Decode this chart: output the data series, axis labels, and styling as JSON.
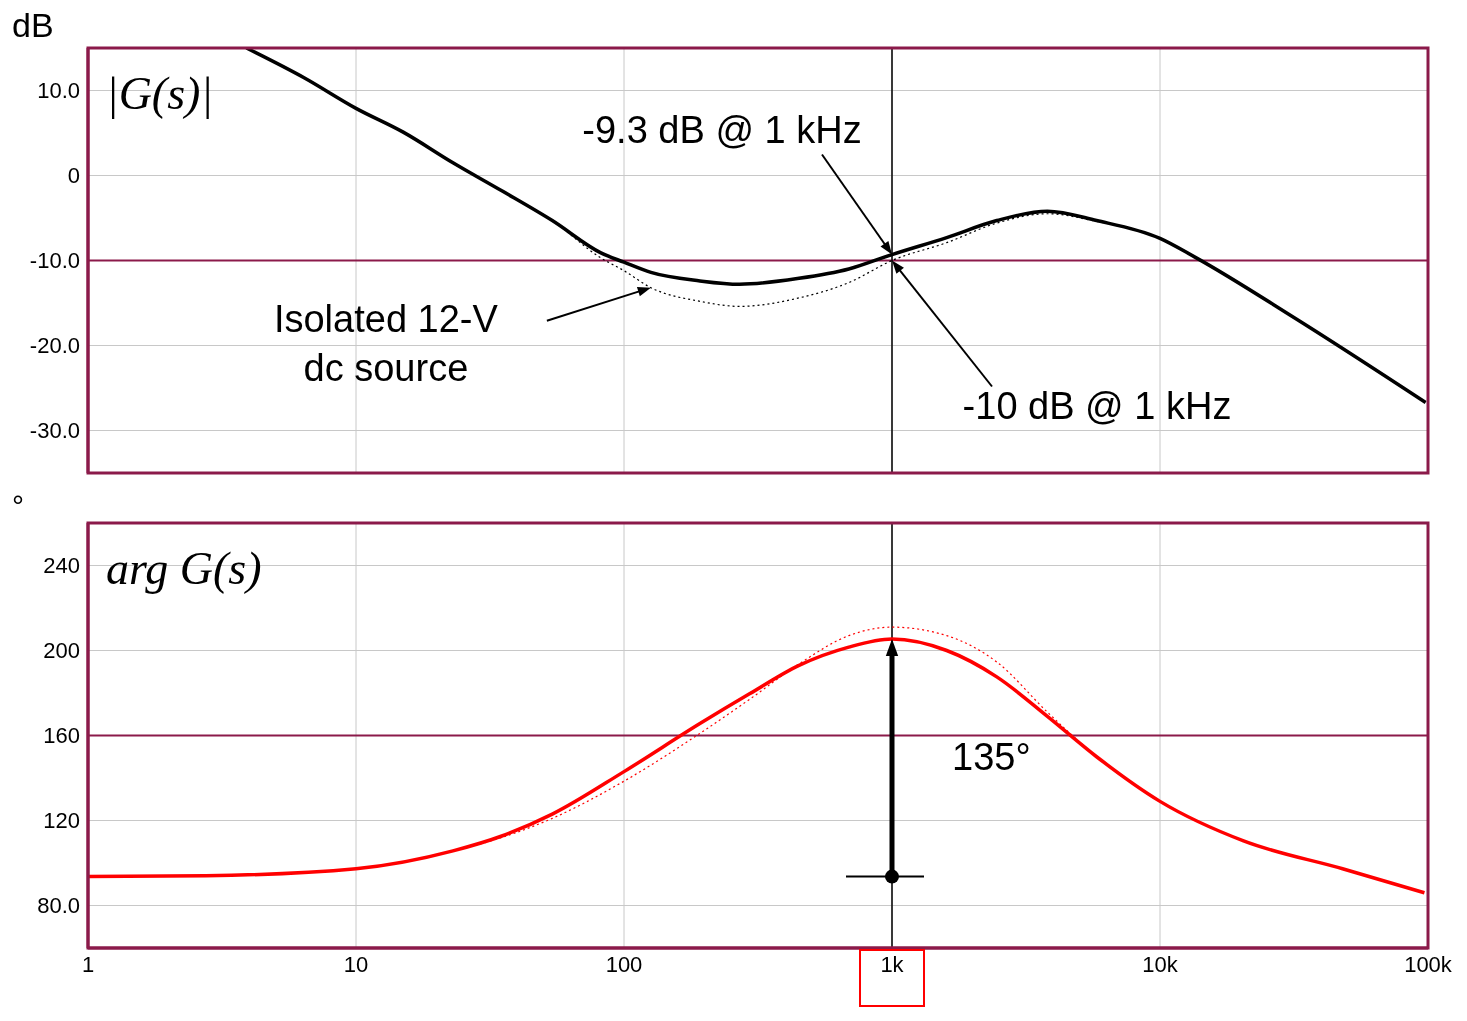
{
  "chart_data": [
    {
      "type": "line",
      "ylabel": "dB",
      "xlim": [
        1,
        100000
      ],
      "xticks": [
        {
          "value": 1,
          "label": null
        },
        {
          "value": 10,
          "label": null
        },
        {
          "value": 100,
          "label": null
        },
        {
          "value": 1000,
          "label": null
        },
        {
          "value": 10000,
          "label": null
        },
        {
          "value": 100000,
          "label": null
        }
      ],
      "ylim": [
        -35,
        15
      ],
      "yticks": [
        {
          "value": -30,
          "label": "-30.0"
        },
        {
          "value": -20,
          "label": "-20.0"
        },
        {
          "value": -10,
          "label": "-10.0"
        },
        0,
        {
          "value": 10,
          "label": "10.0"
        }
      ],
      "log": "x",
      "grid": true,
      "tick_labels": "y",
      "series": [
        {
          "color": "#000000",
          "x": [
            3.9,
            6.4,
            10,
            15,
            23,
            35,
            54,
            82,
            100,
            126,
            192,
            270,
            450,
            690,
            1000,
            1600,
            2460,
            3800,
            5800,
            10000,
            13500,
            31600,
            98000
          ],
          "values": [
            15,
            11.5,
            7.9,
            5.1,
            1.5,
            -1.8,
            -5.3,
            -9.1,
            -10.2,
            -11.4,
            -12.4,
            -12.8,
            -12.1,
            -11,
            -9.3,
            -7.3,
            -5.3,
            -4.2,
            -5.3,
            -7.4,
            -9.6,
            -16.7,
            -26.7
          ]
        },
        {
          "color": "#000000",
          "line_style": "dotted",
          "x": [
            3.9,
            6.4,
            10,
            15,
            23,
            35,
            54,
            82,
            100,
            126,
            192,
            270,
            450,
            690,
            1000,
            1600,
            2460,
            3800,
            5800,
            10000,
            13500,
            31600,
            98000
          ],
          "values": [
            15,
            11.5,
            7.9,
            5.1,
            1.5,
            -1.8,
            -5.3,
            -9.7,
            -11.2,
            -13.2,
            -14.8,
            -15.4,
            -14.4,
            -12.6,
            -10,
            -7.9,
            -5.6,
            -4.5,
            -5.4,
            -7.4,
            -9.6,
            -16.7,
            -26.7
          ]
        }
      ],
      "ref_lines": [
        {
          "axis": "y",
          "value": -10,
          "color": "#8b1a4a"
        },
        {
          "axis": "x",
          "value": 1000,
          "color": "#000000"
        }
      ],
      "annotations": [
        "|G(s)|",
        {
          "text": "-9.3 dB @ 1 kHz",
          "x": 1000,
          "y": -9.3
        },
        "-10 dB @ 1 kHz",
        "Isolated 12-V dc source"
      ]
    },
    {
      "type": "line",
      "ylabel": "°",
      "xlim": [
        1,
        100000
      ],
      "xticks": [
        {
          "value": 1,
          "label": "1"
        },
        {
          "value": 10,
          "label": "10"
        },
        {
          "value": 100,
          "label": "100"
        },
        {
          "value": 1000,
          "label": "1k"
        },
        {
          "value": 10000,
          "label": "10k"
        },
        {
          "value": 100000,
          "label": "100k"
        }
      ],
      "ylim": [
        60,
        260
      ],
      "yticks": [
        {
          "value": 80,
          "label": "80.0"
        },
        120,
        160,
        200,
        240
      ],
      "log": "x",
      "grid": true,
      "series": [
        {
          "color": "#ff0000",
          "x": [
            1,
            2.75,
            10,
            23,
            35,
            54,
            100,
            192,
            294,
            450,
            690,
            1000,
            1600,
            2460,
            3800,
            5800,
            10000,
            20500,
            48000,
            97000
          ],
          "values": [
            93.6,
            94,
            97.3,
            105.7,
            112.7,
            123,
            143,
            165.6,
            179.6,
            193,
            201.6,
            205.4,
            200,
            187.6,
            169,
            150,
            129,
            110.4,
            97.3,
            86
          ]
        },
        {
          "color": "#ff0000",
          "line_style": "dotted",
          "x": [
            1,
            2.75,
            10,
            23,
            35,
            54,
            100,
            192,
            294,
            450,
            690,
            1000,
            1600,
            2460,
            3800,
            5800,
            10000,
            20500,
            48000,
            97000
          ],
          "values": [
            93.6,
            94,
            97.3,
            105.7,
            112,
            121,
            138.5,
            161,
            177,
            193.7,
            207,
            211,
            207,
            194.6,
            171,
            150,
            129,
            110.4,
            97.3,
            86
          ]
        }
      ],
      "ref_lines": [
        {
          "axis": "y",
          "value": 160,
          "color": "#8b1a4a"
        },
        {
          "axis": "x",
          "value": 1000,
          "color": "#000000"
        }
      ],
      "annotations": [
        "arg G(s)",
        {
          "text": "135°",
          "x": 1000,
          "y": 150
        }
      ]
    }
  ]
}
